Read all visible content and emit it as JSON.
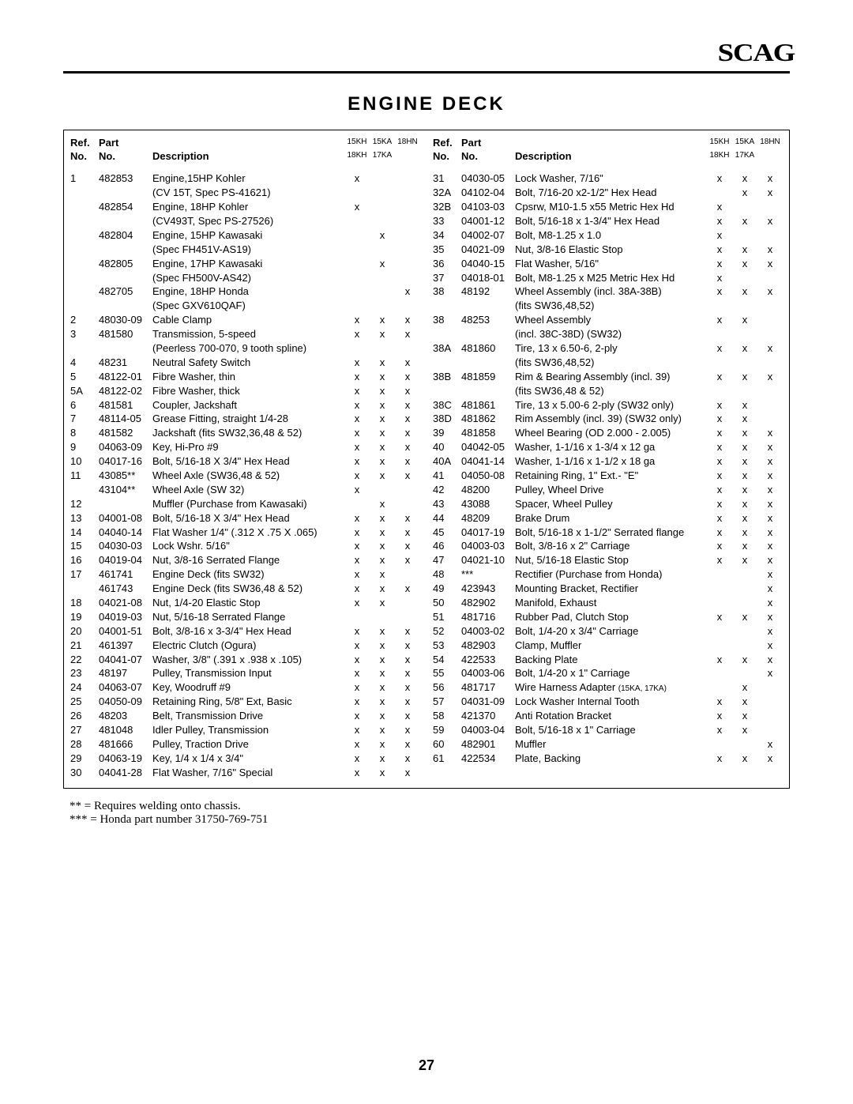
{
  "logo": "SCAG",
  "title": "ENGINE  DECK",
  "head": {
    "ref": "Ref.",
    "no": "No.",
    "part": "Part",
    "pno": "No.",
    "desc": "Description",
    "c1a": "15KH",
    "c2a": "15KA",
    "c3a": "18HN",
    "c1b": "18KH",
    "c2b": "17KA"
  },
  "left": [
    {
      "r": "1",
      "p": "482853",
      "d": "Engine,15HP Kohler",
      "x": [
        "x",
        "",
        ""
      ]
    },
    {
      "r": "",
      "p": "",
      "d": "(CV 15T, Spec PS-41621)",
      "x": [
        "",
        "",
        ""
      ]
    },
    {
      "r": "",
      "p": "482854",
      "d": "Engine, 18HP Kohler",
      "x": [
        "x",
        "",
        ""
      ]
    },
    {
      "r": "",
      "p": "",
      "d": "(CV493T, Spec PS-27526)",
      "x": [
        "",
        "",
        ""
      ]
    },
    {
      "r": "",
      "p": "482804",
      "d": "Engine, 15HP Kawasaki",
      "x": [
        "",
        "x",
        ""
      ]
    },
    {
      "r": "",
      "p": "",
      "d": "(Spec FH451V-AS19)",
      "x": [
        "",
        "",
        ""
      ]
    },
    {
      "r": "",
      "p": "482805",
      "d": "Engine, 17HP Kawasaki",
      "x": [
        "",
        "x",
        ""
      ]
    },
    {
      "r": "",
      "p": "",
      "d": "(Spec FH500V-AS42)",
      "x": [
        "",
        "",
        ""
      ]
    },
    {
      "r": "",
      "p": "482705",
      "d": "Engine, 18HP Honda",
      "x": [
        "",
        "",
        "x"
      ]
    },
    {
      "r": "",
      "p": "",
      "d": "(Spec GXV610QAF)",
      "x": [
        "",
        "",
        ""
      ]
    },
    {
      "r": "2",
      "p": "48030-09",
      "d": "Cable Clamp",
      "x": [
        "x",
        "x",
        "x"
      ]
    },
    {
      "r": "3",
      "p": "481580",
      "d": "Transmission, 5-speed",
      "x": [
        "x",
        "x",
        "x"
      ]
    },
    {
      "r": "",
      "p": "",
      "d": "(Peerless 700-070, 9 tooth spline)",
      "x": [
        "",
        "",
        ""
      ]
    },
    {
      "r": "4",
      "p": "48231",
      "d": "Neutral Safety Switch",
      "x": [
        "x",
        "x",
        "x"
      ]
    },
    {
      "r": "5",
      "p": "48122-01",
      "d": "Fibre Washer, thin",
      "x": [
        "x",
        "x",
        "x"
      ]
    },
    {
      "r": "5A",
      "p": "48122-02",
      "d": "Fibre Washer, thick",
      "x": [
        "x",
        "x",
        "x"
      ]
    },
    {
      "r": "6",
      "p": "481581",
      "d": "Coupler, Jackshaft",
      "x": [
        "x",
        "x",
        "x"
      ]
    },
    {
      "r": "7",
      "p": "48114-05",
      "d": "Grease Fitting, straight 1/4-28",
      "x": [
        "x",
        "x",
        "x"
      ]
    },
    {
      "r": "8",
      "p": "481582",
      "d": "Jackshaft (fits SW32,36,48 & 52)",
      "x": [
        "x",
        "x",
        "x"
      ]
    },
    {
      "r": "9",
      "p": "04063-09",
      "d": "Key, Hi-Pro #9",
      "x": [
        "x",
        "x",
        "x"
      ]
    },
    {
      "r": "10",
      "p": "04017-16",
      "d": "Bolt, 5/16-18 X 3/4\" Hex Head",
      "x": [
        "x",
        "x",
        "x"
      ]
    },
    {
      "r": "11",
      "p": "43085**",
      "d": "Wheel Axle (SW36,48 & 52)",
      "x": [
        "x",
        "x",
        "x"
      ]
    },
    {
      "r": "",
      "p": "43104**",
      "d": "Wheel Axle (SW 32)",
      "x": [
        "x",
        "",
        ""
      ]
    },
    {
      "r": "12",
      "p": "",
      "d": "Muffler (Purchase from Kawasaki)",
      "x": [
        "",
        "x",
        ""
      ]
    },
    {
      "r": "13",
      "p": "04001-08",
      "d": "Bolt, 5/16-18 X 3/4\" Hex Head",
      "x": [
        "x",
        "x",
        "x"
      ]
    },
    {
      "r": "14",
      "p": "04040-14",
      "d": "Flat Washer 1/4\" (.312 X .75 X .065)",
      "x": [
        "x",
        "x",
        "x"
      ]
    },
    {
      "r": "15",
      "p": "04030-03",
      "d": "Lock Wshr. 5/16\"",
      "x": [
        "x",
        "x",
        "x"
      ]
    },
    {
      "r": "16",
      "p": "04019-04",
      "d": "Nut, 3/8-16 Serrated Flange",
      "x": [
        "x",
        "x",
        "x"
      ]
    },
    {
      "r": "17",
      "p": "461741",
      "d": "Engine Deck (fits SW32)",
      "x": [
        "x",
        "x",
        ""
      ]
    },
    {
      "r": "",
      "p": "461743",
      "d": "Engine Deck (fits SW36,48 & 52)",
      "x": [
        "x",
        "x",
        "x"
      ]
    },
    {
      "r": "18",
      "p": "04021-08",
      "d": "Nut, 1/4-20 Elastic Stop",
      "x": [
        "x",
        "x",
        ""
      ]
    },
    {
      "r": "19",
      "p": "04019-03",
      "d": "Nut, 5/16-18 Serrated Flange",
      "x": [
        "",
        "",
        ""
      ]
    },
    {
      "r": "20",
      "p": "04001-51",
      "d": "Bolt, 3/8-16 x 3-3/4\" Hex Head",
      "x": [
        "x",
        "x",
        "x"
      ]
    },
    {
      "r": "21",
      "p": "461397",
      "d": "Electric Clutch (Ogura)",
      "x": [
        "x",
        "x",
        "x"
      ]
    },
    {
      "r": "22",
      "p": "04041-07",
      "d": "Washer, 3/8\" (.391 x .938 x .105)",
      "x": [
        "x",
        "x",
        "x"
      ]
    },
    {
      "r": "23",
      "p": "48197",
      "d": "Pulley, Transmission Input",
      "x": [
        "x",
        "x",
        "x"
      ]
    },
    {
      "r": "24",
      "p": "04063-07",
      "d": "Key, Woodruff #9",
      "x": [
        "x",
        "x",
        "x"
      ]
    },
    {
      "r": "25",
      "p": "04050-09",
      "d": "Retaining Ring, 5/8\" Ext, Basic",
      "x": [
        "x",
        "x",
        "x"
      ]
    },
    {
      "r": "26",
      "p": "48203",
      "d": "Belt, Transmission Drive",
      "x": [
        "x",
        "x",
        "x"
      ]
    },
    {
      "r": "27",
      "p": "481048",
      "d": "Idler Pulley, Transmission",
      "x": [
        "x",
        "x",
        "x"
      ]
    },
    {
      "r": "28",
      "p": "481666",
      "d": "Pulley, Traction Drive",
      "x": [
        "x",
        "x",
        "x"
      ]
    },
    {
      "r": "29",
      "p": "04063-19",
      "d": "Key, 1/4 x 1/4 x 3/4\"",
      "x": [
        "x",
        "x",
        "x"
      ]
    },
    {
      "r": "30",
      "p": "04041-28",
      "d": "Flat Washer, 7/16\" Special",
      "x": [
        "x",
        "x",
        "x"
      ]
    }
  ],
  "right": [
    {
      "r": "31",
      "p": "04030-05",
      "d": "Lock Washer, 7/16\"",
      "x": [
        "x",
        "x",
        "x"
      ]
    },
    {
      "r": "32A",
      "p": "04102-04",
      "d": "Bolt, 7/16-20 x2-1/2\" Hex Head",
      "x": [
        "",
        "x",
        "x"
      ]
    },
    {
      "r": "32B",
      "p": "04103-03",
      "d": "Cpsrw, M10-1.5 x55 Metric Hex Hd",
      "x": [
        "x",
        "",
        ""
      ]
    },
    {
      "r": "33",
      "p": "04001-12",
      "d": "Bolt, 5/16-18 x 1-3/4\" Hex Head",
      "x": [
        "x",
        "x",
        "x"
      ]
    },
    {
      "r": "34",
      "p": "04002-07",
      "d": "Bolt, M8-1.25 x 1.0",
      "x": [
        "x",
        "",
        ""
      ]
    },
    {
      "r": "35",
      "p": "04021-09",
      "d": "Nut, 3/8-16 Elastic Stop",
      "x": [
        "x",
        "x",
        "x"
      ]
    },
    {
      "r": "36",
      "p": "04040-15",
      "d": "Flat Washer, 5/16\"",
      "x": [
        "x",
        "x",
        "x"
      ]
    },
    {
      "r": "37",
      "p": "04018-01",
      "d": "Bolt, M8-1.25 x M25 Metric Hex Hd",
      "x": [
        "x",
        "",
        ""
      ]
    },
    {
      "r": "38",
      "p": "48192",
      "d": "Wheel Assembly (incl. 38A-38B)",
      "x": [
        "x",
        "x",
        "x"
      ]
    },
    {
      "r": "",
      "p": "",
      "d": "(fits SW36,48,52)",
      "x": [
        "",
        "",
        ""
      ]
    },
    {
      "r": "38",
      "p": "48253",
      "d": "Wheel Assembly",
      "x": [
        "x",
        "x",
        ""
      ]
    },
    {
      "r": "",
      "p": "",
      "d": "(incl. 38C-38D) (SW32)",
      "x": [
        "",
        "",
        ""
      ]
    },
    {
      "r": "38A",
      "p": "481860",
      "d": "Tire, 13 x 6.50-6, 2-ply",
      "x": [
        "x",
        "x",
        "x"
      ]
    },
    {
      "r": "",
      "p": "",
      "d": "(fits SW36,48,52)",
      "x": [
        "",
        "",
        ""
      ]
    },
    {
      "r": "38B",
      "p": "481859",
      "d": "Rim & Bearing Assembly (incl. 39)",
      "x": [
        "x",
        "x",
        "x"
      ]
    },
    {
      "r": "",
      "p": "",
      "d": "(fits SW36,48 & 52)",
      "x": [
        "",
        "",
        ""
      ]
    },
    {
      "r": "38C",
      "p": "481861",
      "d": "Tire, 13 x 5.00-6 2-ply (SW32 only)",
      "x": [
        "x",
        "x",
        ""
      ]
    },
    {
      "r": "38D",
      "p": "481862",
      "d": "Rim Assembly (incl. 39) (SW32 only)",
      "x": [
        "x",
        "x",
        ""
      ]
    },
    {
      "r": "39",
      "p": "481858",
      "d": "Wheel Bearing (OD 2.000 - 2.005)",
      "x": [
        "x",
        "x",
        "x"
      ]
    },
    {
      "r": "40",
      "p": "04042-05",
      "d": "Washer, 1-1/16 x 1-3/4 x 12 ga",
      "x": [
        "x",
        "x",
        "x"
      ]
    },
    {
      "r": "40A",
      "p": "04041-14",
      "d": "Washer, 1-1/16 x 1-1/2 x 18 ga",
      "x": [
        "x",
        "x",
        "x"
      ]
    },
    {
      "r": "41",
      "p": "04050-08",
      "d": "Retaining Ring, 1\" Ext.- \"E\"",
      "x": [
        "x",
        "x",
        "x"
      ]
    },
    {
      "r": "42",
      "p": "48200",
      "d": "Pulley, Wheel Drive",
      "x": [
        "x",
        "x",
        "x"
      ]
    },
    {
      "r": "43",
      "p": "43088",
      "d": "Spacer, Wheel Pulley",
      "x": [
        "x",
        "x",
        "x"
      ]
    },
    {
      "r": "44",
      "p": "48209",
      "d": "Brake Drum",
      "x": [
        "x",
        "x",
        "x"
      ]
    },
    {
      "r": "45",
      "p": "04017-19",
      "d": "Bolt, 5/16-18 x 1-1/2\" Serrated flange",
      "x": [
        "x",
        "x",
        "x"
      ]
    },
    {
      "r": "46",
      "p": "04003-03",
      "d": "Bolt, 3/8-16 x 2\" Carriage",
      "x": [
        "x",
        "x",
        "x"
      ]
    },
    {
      "r": "47",
      "p": "04021-10",
      "d": "Nut, 5/16-18 Elastic Stop",
      "x": [
        "x",
        "x",
        "x"
      ]
    },
    {
      "r": "48",
      "p": "***",
      "d": "Rectifier (Purchase from Honda)",
      "x": [
        "",
        "",
        "x"
      ]
    },
    {
      "r": "49",
      "p": "423943",
      "d": "Mounting Bracket, Rectifier",
      "x": [
        "",
        "",
        "x"
      ]
    },
    {
      "r": "50",
      "p": "482902",
      "d": "Manifold, Exhaust",
      "x": [
        "",
        "",
        "x"
      ]
    },
    {
      "r": "51",
      "p": "481716",
      "d": "Rubber Pad, Clutch Stop",
      "x": [
        "x",
        "x",
        "x"
      ]
    },
    {
      "r": "52",
      "p": "04003-02",
      "d": "Bolt, 1/4-20 x 3/4\" Carriage",
      "x": [
        "",
        "",
        "x"
      ]
    },
    {
      "r": "53",
      "p": "482903",
      "d": "Clamp, Muffler",
      "x": [
        "",
        "",
        "x"
      ]
    },
    {
      "r": "54",
      "p": "422533",
      "d": "Backing Plate",
      "x": [
        "x",
        "x",
        "x"
      ]
    },
    {
      "r": "55",
      "p": "04003-06",
      "d": "Bolt, 1/4-20 x 1\" Carriage",
      "x": [
        "",
        "",
        "x"
      ]
    },
    {
      "r": "56",
      "p": "481717",
      "d": "Wire Harness Adapter <span class=\"sml\">(15KA, 17KA)</span>",
      "x": [
        "",
        "x",
        ""
      ]
    },
    {
      "r": "57",
      "p": "04031-09",
      "d": "Lock Washer Internal Tooth",
      "x": [
        "x",
        "x",
        ""
      ]
    },
    {
      "r": "58",
      "p": "421370",
      "d": "Anti Rotation Bracket",
      "x": [
        "x",
        "x",
        ""
      ]
    },
    {
      "r": "59",
      "p": "04003-04",
      "d": "Bolt, 5/16-18 x 1\" Carriage",
      "x": [
        "x",
        "x",
        ""
      ]
    },
    {
      "r": "60",
      "p": "482901",
      "d": "Muffler",
      "x": [
        "",
        "",
        "x"
      ]
    },
    {
      "r": "61",
      "p": "422534",
      "d": "Plate, Backing",
      "x": [
        "x",
        "x",
        "x"
      ]
    }
  ],
  "notes": [
    " ** = Requires welding  onto chassis.",
    "*** = Honda part number 31750-769-751"
  ],
  "pagenum": "27"
}
